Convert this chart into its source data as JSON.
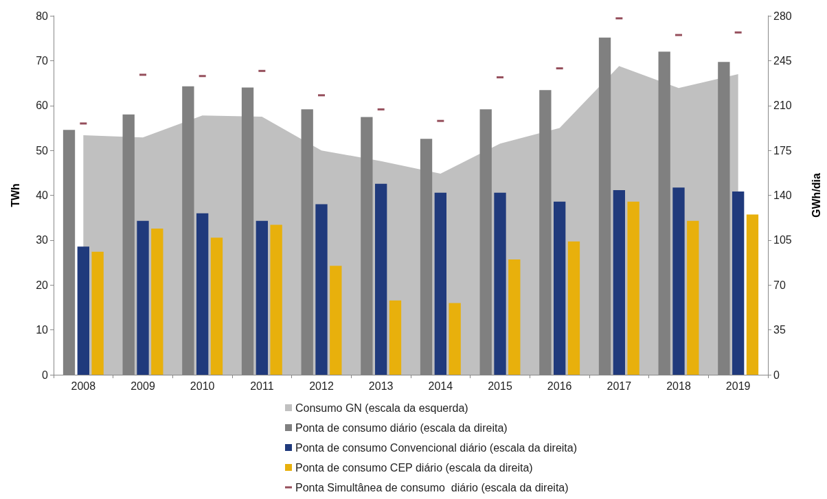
{
  "chart_data": {
    "type": "bar",
    "categories": [
      "2008",
      "2009",
      "2010",
      "2011",
      "2012",
      "2013",
      "2014",
      "2015",
      "2016",
      "2017",
      "2018",
      "2019"
    ],
    "series": [
      {
        "name": "Consumo GN (escala da esquerda)",
        "type": "area",
        "color": "#c0c0c0",
        "values": [
          53.4,
          52.9,
          57.8,
          57.5,
          50.0,
          47.6,
          44.8,
          51.5,
          55.0,
          68.8,
          63.9,
          67.0
        ]
      },
      {
        "name": "Ponta de consumo diário (escala da direita)",
        "axis": "y2",
        "color": "#808080",
        "values": [
          191,
          203,
          225,
          224,
          207,
          201,
          184,
          207,
          222,
          263,
          252,
          244
        ]
      },
      {
        "name": "Ponta de consumo Convencional diário (escala da direita)",
        "axis": "y2",
        "color": "#203a7c",
        "values": [
          100,
          120,
          126,
          120,
          133,
          149,
          142,
          142,
          135,
          144,
          146,
          143
        ]
      },
      {
        "name": "Ponta de consumo CEP diário (escala da direita)",
        "axis": "y2",
        "color": "#e8b00c",
        "values": [
          96,
          114,
          107,
          117,
          85,
          58,
          56,
          90,
          104,
          135,
          120,
          125
        ]
      },
      {
        "name": "Ponta Simultânea de consumo  diário (escala da direita)",
        "type": "scatter",
        "axis": "y2",
        "color": "#7b2232",
        "values": [
          196,
          234,
          233,
          237,
          218,
          207,
          198,
          232,
          239,
          278,
          265,
          267
        ]
      }
    ],
    "ylabel": "TWh",
    "y2label": "GWh/dia",
    "ylim": [
      0,
      80
    ],
    "yticks": [
      0,
      10,
      20,
      30,
      40,
      50,
      60,
      70,
      80
    ],
    "y2lim": [
      0,
      280
    ],
    "y2ticks": [
      0,
      35,
      70,
      105,
      140,
      175,
      210,
      245,
      280
    ],
    "grid": false,
    "legend": "bottom"
  }
}
